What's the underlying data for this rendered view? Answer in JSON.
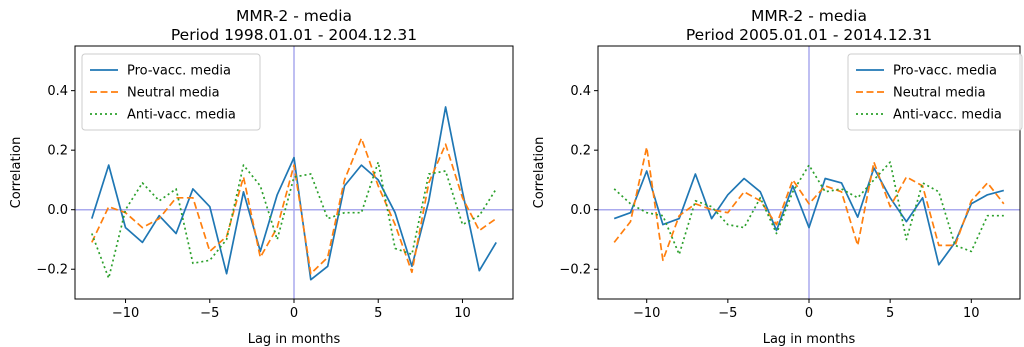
{
  "chart_data": [
    {
      "type": "line",
      "title": "MMR-2 - media",
      "subtitle": "Period 1998.01.01 - 2004.12.31",
      "xlabel": "Lag in months",
      "ylabel": "Correlation",
      "xlim": [
        -13,
        13
      ],
      "ylim": [
        -0.3,
        0.55
      ],
      "xticks": [
        -10,
        -5,
        0,
        5,
        10
      ],
      "xtick_labels": [
        "−10",
        "−5",
        "0",
        "5",
        "10"
      ],
      "yticks": [
        -0.2,
        0.0,
        0.2,
        0.4
      ],
      "ytick_labels": [
        "−0.2",
        "0.0",
        "0.2",
        "0.4"
      ],
      "grid": false,
      "legend": "top-left",
      "reference_lines": {
        "x": 0,
        "y": 0,
        "color": "#aaaaee"
      },
      "x": [
        -12,
        -11,
        -10,
        -9,
        -8,
        -7,
        -6,
        -5,
        -4,
        -3,
        -2,
        -1,
        0,
        1,
        2,
        3,
        4,
        5,
        6,
        7,
        8,
        9,
        10,
        11,
        12
      ],
      "series": [
        {
          "name": "Pro-vacc. media",
          "color": "#1f77b4",
          "dash": "solid",
          "values": [
            -0.03,
            0.15,
            -0.06,
            -0.11,
            -0.02,
            -0.08,
            0.07,
            0.01,
            -0.215,
            0.06,
            -0.14,
            0.05,
            0.175,
            -0.235,
            -0.19,
            0.08,
            0.15,
            0.1,
            -0.01,
            -0.19,
            0.03,
            0.345,
            0.06,
            -0.205,
            -0.11
          ]
        },
        {
          "name": "Neutral media",
          "color": "#ff7f0e",
          "dash": "dashed",
          "values": [
            -0.11,
            0.01,
            -0.01,
            -0.06,
            -0.03,
            0.04,
            0.04,
            -0.14,
            -0.09,
            0.11,
            -0.16,
            -0.06,
            0.15,
            -0.215,
            -0.16,
            0.1,
            0.24,
            0.08,
            -0.05,
            -0.21,
            0.09,
            0.22,
            0.04,
            -0.07,
            -0.03
          ]
        },
        {
          "name": "Anti-vacc. media",
          "color": "#2ca02c",
          "dash": "dotted",
          "values": [
            -0.08,
            -0.23,
            0.0,
            0.09,
            0.03,
            0.07,
            -0.18,
            -0.17,
            -0.1,
            0.15,
            0.08,
            -0.1,
            0.11,
            0.12,
            -0.03,
            -0.01,
            -0.01,
            0.16,
            -0.13,
            -0.15,
            0.12,
            0.13,
            -0.05,
            -0.02,
            0.07
          ]
        }
      ]
    },
    {
      "type": "line",
      "title": "MMR-2 - media",
      "subtitle": "Period 2005.01.01 - 2014.12.31",
      "xlabel": "Lag in months",
      "ylabel": "Correlation",
      "xlim": [
        -13,
        13
      ],
      "ylim": [
        -0.3,
        0.55
      ],
      "xticks": [
        -10,
        -5,
        0,
        5,
        10
      ],
      "xtick_labels": [
        "−10",
        "−5",
        "0",
        "5",
        "10"
      ],
      "yticks": [
        -0.2,
        0.0,
        0.2,
        0.4
      ],
      "ytick_labels": [
        "−0.2",
        "0.0",
        "0.2",
        "0.4"
      ],
      "grid": false,
      "legend": "top-right",
      "reference_lines": {
        "x": 0,
        "y": 0,
        "color": "#aaaaee"
      },
      "x": [
        -12,
        -11,
        -10,
        -9,
        -8,
        -7,
        -6,
        -5,
        -4,
        -3,
        -2,
        -1,
        0,
        1,
        2,
        3,
        4,
        5,
        6,
        7,
        8,
        9,
        10,
        11,
        12
      ],
      "series": [
        {
          "name": "Pro-vacc. media",
          "color": "#1f77b4",
          "dash": "solid",
          "values": [
            -0.03,
            -0.01,
            0.13,
            -0.05,
            -0.03,
            0.12,
            -0.03,
            0.05,
            0.105,
            0.06,
            -0.07,
            0.08,
            -0.06,
            0.105,
            0.09,
            -0.025,
            0.14,
            0.04,
            -0.04,
            0.04,
            -0.185,
            -0.11,
            0.02,
            0.05,
            0.065
          ]
        },
        {
          "name": "Neutral media",
          "color": "#ff7f0e",
          "dash": "dashed",
          "values": [
            -0.11,
            -0.04,
            0.21,
            -0.17,
            -0.02,
            0.02,
            0.0,
            -0.01,
            0.06,
            0.03,
            -0.05,
            0.1,
            0.02,
            0.08,
            0.06,
            -0.12,
            0.16,
            0.01,
            0.11,
            0.08,
            -0.12,
            -0.12,
            0.03,
            0.09,
            0.02
          ]
        },
        {
          "name": "Anti-vacc. media",
          "color": "#2ca02c",
          "dash": "dotted",
          "values": [
            0.07,
            0.02,
            -0.01,
            -0.02,
            -0.15,
            0.03,
            0.01,
            -0.05,
            -0.06,
            0.04,
            -0.08,
            0.06,
            0.15,
            0.06,
            0.07,
            0.04,
            0.1,
            0.16,
            -0.1,
            0.09,
            0.06,
            -0.12,
            -0.14,
            -0.02,
            -0.02
          ]
        }
      ]
    }
  ]
}
